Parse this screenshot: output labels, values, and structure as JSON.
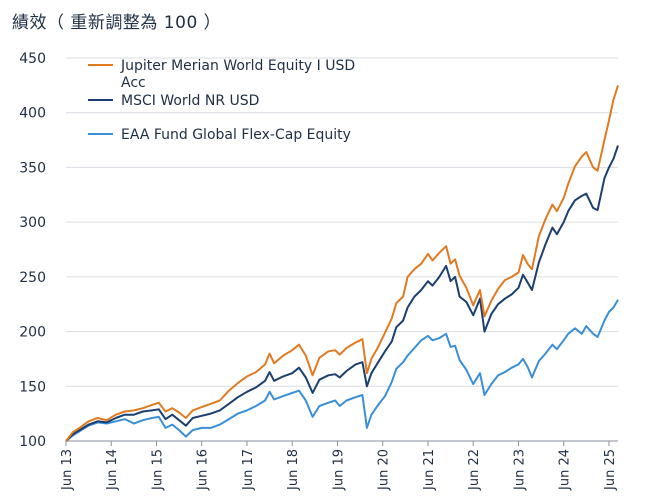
{
  "chart_data": {
    "type": "line",
    "title": "績效（ 重新調整為 100 ）",
    "ylim": [
      100,
      450
    ],
    "yticks": [
      100,
      150,
      200,
      250,
      300,
      350,
      400,
      450
    ],
    "xlim": [
      2013.5,
      2025.7
    ],
    "xticks": [
      {
        "label": "Jun 13",
        "x": 2013.5
      },
      {
        "label": "Jun 14",
        "x": 2014.5
      },
      {
        "label": "Jun 15",
        "x": 2015.5
      },
      {
        "label": "Jun 16",
        "x": 2016.5
      },
      {
        "label": "Jun 17",
        "x": 2017.5
      },
      {
        "label": "Jun 18",
        "x": 2018.5
      },
      {
        "label": "Jun 19",
        "x": 2019.5
      },
      {
        "label": "Jun 20",
        "x": 2020.5
      },
      {
        "label": "Jun 21",
        "x": 2021.5
      },
      {
        "label": "Jun 22",
        "x": 2022.5
      },
      {
        "label": "Jun 23",
        "x": 2023.5
      },
      {
        "label": "Jun 24",
        "x": 2024.5
      },
      {
        "label": "Jun 25",
        "x": 2025.5
      }
    ],
    "legend_position": "top-left",
    "series": [
      {
        "name": "Jupiter Merian World Equity I USD Acc",
        "legend_lines": [
          "Jupiter Merian World Equity I USD",
          "Acc"
        ],
        "color": "#e07b22",
        "points": [
          [
            2013.5,
            100
          ],
          [
            2013.65,
            108
          ],
          [
            2013.8,
            112
          ],
          [
            2014.0,
            118
          ],
          [
            2014.2,
            121
          ],
          [
            2014.4,
            119
          ],
          [
            2014.6,
            124
          ],
          [
            2014.8,
            127
          ],
          [
            2015.0,
            128
          ],
          [
            2015.2,
            130
          ],
          [
            2015.4,
            133
          ],
          [
            2015.55,
            135
          ],
          [
            2015.7,
            127
          ],
          [
            2015.85,
            130
          ],
          [
            2016.0,
            126
          ],
          [
            2016.15,
            121
          ],
          [
            2016.3,
            128
          ],
          [
            2016.5,
            131
          ],
          [
            2016.7,
            134
          ],
          [
            2016.9,
            137
          ],
          [
            2017.1,
            146
          ],
          [
            2017.3,
            153
          ],
          [
            2017.5,
            159
          ],
          [
            2017.7,
            163
          ],
          [
            2017.9,
            170
          ],
          [
            2018.0,
            180
          ],
          [
            2018.1,
            171
          ],
          [
            2018.3,
            178
          ],
          [
            2018.5,
            183
          ],
          [
            2018.65,
            188
          ],
          [
            2018.8,
            178
          ],
          [
            2018.95,
            160
          ],
          [
            2019.1,
            176
          ],
          [
            2019.3,
            182
          ],
          [
            2019.45,
            183
          ],
          [
            2019.55,
            179
          ],
          [
            2019.7,
            185
          ],
          [
            2019.9,
            190
          ],
          [
            2020.05,
            193
          ],
          [
            2020.15,
            162
          ],
          [
            2020.25,
            175
          ],
          [
            2020.4,
            186
          ],
          [
            2020.55,
            199
          ],
          [
            2020.7,
            212
          ],
          [
            2020.8,
            226
          ],
          [
            2020.95,
            232
          ],
          [
            2021.05,
            250
          ],
          [
            2021.2,
            257
          ],
          [
            2021.35,
            262
          ],
          [
            2021.5,
            271
          ],
          [
            2021.6,
            265
          ],
          [
            2021.75,
            272
          ],
          [
            2021.9,
            278
          ],
          [
            2022.0,
            262
          ],
          [
            2022.1,
            266
          ],
          [
            2022.2,
            251
          ],
          [
            2022.35,
            240
          ],
          [
            2022.5,
            224
          ],
          [
            2022.65,
            238
          ],
          [
            2022.75,
            214
          ],
          [
            2022.9,
            228
          ],
          [
            2023.05,
            239
          ],
          [
            2023.2,
            247
          ],
          [
            2023.35,
            250
          ],
          [
            2023.5,
            254
          ],
          [
            2023.6,
            270
          ],
          [
            2023.7,
            262
          ],
          [
            2023.8,
            257
          ],
          [
            2023.95,
            287
          ],
          [
            2024.1,
            303
          ],
          [
            2024.25,
            316
          ],
          [
            2024.35,
            310
          ],
          [
            2024.5,
            322
          ],
          [
            2024.6,
            335
          ],
          [
            2024.75,
            351
          ],
          [
            2024.9,
            360
          ],
          [
            2025.0,
            364
          ],
          [
            2025.15,
            350
          ],
          [
            2025.25,
            347
          ],
          [
            2025.4,
            375
          ],
          [
            2025.5,
            393
          ],
          [
            2025.6,
            412
          ],
          [
            2025.7,
            425
          ]
        ]
      },
      {
        "name": "MSCI World NR USD",
        "legend_lines": [
          "MSCI World NR USD"
        ],
        "color": "#1b3f6f",
        "points": [
          [
            2013.5,
            100
          ],
          [
            2013.65,
            106
          ],
          [
            2013.8,
            110
          ],
          [
            2014.0,
            115
          ],
          [
            2014.2,
            118
          ],
          [
            2014.4,
            117
          ],
          [
            2014.6,
            121
          ],
          [
            2014.8,
            124
          ],
          [
            2015.0,
            124
          ],
          [
            2015.2,
            127
          ],
          [
            2015.4,
            128
          ],
          [
            2015.55,
            129
          ],
          [
            2015.7,
            120
          ],
          [
            2015.85,
            124
          ],
          [
            2016.0,
            119
          ],
          [
            2016.15,
            114
          ],
          [
            2016.3,
            121
          ],
          [
            2016.5,
            123
          ],
          [
            2016.7,
            125
          ],
          [
            2016.9,
            128
          ],
          [
            2017.1,
            134
          ],
          [
            2017.3,
            140
          ],
          [
            2017.5,
            145
          ],
          [
            2017.7,
            149
          ],
          [
            2017.9,
            155
          ],
          [
            2018.0,
            163
          ],
          [
            2018.1,
            155
          ],
          [
            2018.3,
            159
          ],
          [
            2018.5,
            162
          ],
          [
            2018.65,
            167
          ],
          [
            2018.8,
            158
          ],
          [
            2018.95,
            144
          ],
          [
            2019.1,
            156
          ],
          [
            2019.3,
            160
          ],
          [
            2019.45,
            161
          ],
          [
            2019.55,
            158
          ],
          [
            2019.7,
            164
          ],
          [
            2019.9,
            170
          ],
          [
            2020.05,
            172
          ],
          [
            2020.15,
            150
          ],
          [
            2020.25,
            162
          ],
          [
            2020.4,
            172
          ],
          [
            2020.55,
            182
          ],
          [
            2020.7,
            191
          ],
          [
            2020.8,
            204
          ],
          [
            2020.95,
            210
          ],
          [
            2021.05,
            222
          ],
          [
            2021.2,
            232
          ],
          [
            2021.35,
            238
          ],
          [
            2021.5,
            246
          ],
          [
            2021.6,
            242
          ],
          [
            2021.75,
            250
          ],
          [
            2021.9,
            260
          ],
          [
            2022.0,
            246
          ],
          [
            2022.1,
            250
          ],
          [
            2022.2,
            232
          ],
          [
            2022.35,
            227
          ],
          [
            2022.5,
            215
          ],
          [
            2022.65,
            230
          ],
          [
            2022.75,
            200
          ],
          [
            2022.9,
            216
          ],
          [
            2023.05,
            225
          ],
          [
            2023.2,
            230
          ],
          [
            2023.35,
            234
          ],
          [
            2023.5,
            240
          ],
          [
            2023.6,
            252
          ],
          [
            2023.7,
            245
          ],
          [
            2023.8,
            238
          ],
          [
            2023.95,
            263
          ],
          [
            2024.1,
            280
          ],
          [
            2024.25,
            295
          ],
          [
            2024.35,
            289
          ],
          [
            2024.5,
            300
          ],
          [
            2024.6,
            310
          ],
          [
            2024.75,
            320
          ],
          [
            2024.9,
            324
          ],
          [
            2025.0,
            326
          ],
          [
            2025.15,
            313
          ],
          [
            2025.25,
            311
          ],
          [
            2025.4,
            340
          ],
          [
            2025.5,
            350
          ],
          [
            2025.6,
            358
          ],
          [
            2025.7,
            370
          ]
        ]
      },
      {
        "name": "EAA Fund Global Flex-Cap Equity",
        "legend_lines": [
          "EAA Fund Global Flex-Cap Equity"
        ],
        "color": "#3b8fd6",
        "points": [
          [
            2013.5,
            100
          ],
          [
            2013.65,
            105
          ],
          [
            2013.8,
            109
          ],
          [
            2014.0,
            114
          ],
          [
            2014.2,
            117
          ],
          [
            2014.4,
            116
          ],
          [
            2014.6,
            118
          ],
          [
            2014.8,
            120
          ],
          [
            2015.0,
            116
          ],
          [
            2015.2,
            119
          ],
          [
            2015.4,
            121
          ],
          [
            2015.55,
            122
          ],
          [
            2015.7,
            112
          ],
          [
            2015.85,
            115
          ],
          [
            2016.0,
            110
          ],
          [
            2016.15,
            104
          ],
          [
            2016.3,
            110
          ],
          [
            2016.5,
            112
          ],
          [
            2016.7,
            112
          ],
          [
            2016.9,
            115
          ],
          [
            2017.1,
            120
          ],
          [
            2017.3,
            125
          ],
          [
            2017.5,
            128
          ],
          [
            2017.7,
            132
          ],
          [
            2017.9,
            137
          ],
          [
            2018.0,
            145
          ],
          [
            2018.1,
            138
          ],
          [
            2018.3,
            141
          ],
          [
            2018.5,
            144
          ],
          [
            2018.65,
            146
          ],
          [
            2018.8,
            137
          ],
          [
            2018.95,
            122
          ],
          [
            2019.1,
            132
          ],
          [
            2019.3,
            135
          ],
          [
            2019.45,
            137
          ],
          [
            2019.55,
            132
          ],
          [
            2019.7,
            137
          ],
          [
            2019.9,
            140
          ],
          [
            2020.05,
            142
          ],
          [
            2020.15,
            112
          ],
          [
            2020.25,
            124
          ],
          [
            2020.4,
            133
          ],
          [
            2020.55,
            141
          ],
          [
            2020.7,
            154
          ],
          [
            2020.8,
            166
          ],
          [
            2020.95,
            172
          ],
          [
            2021.05,
            178
          ],
          [
            2021.2,
            185
          ],
          [
            2021.35,
            192
          ],
          [
            2021.5,
            196
          ],
          [
            2021.6,
            192
          ],
          [
            2021.75,
            194
          ],
          [
            2021.9,
            198
          ],
          [
            2022.0,
            186
          ],
          [
            2022.1,
            187
          ],
          [
            2022.2,
            174
          ],
          [
            2022.35,
            165
          ],
          [
            2022.5,
            152
          ],
          [
            2022.65,
            162
          ],
          [
            2022.75,
            142
          ],
          [
            2022.9,
            152
          ],
          [
            2023.05,
            160
          ],
          [
            2023.2,
            163
          ],
          [
            2023.35,
            167
          ],
          [
            2023.5,
            170
          ],
          [
            2023.6,
            175
          ],
          [
            2023.7,
            168
          ],
          [
            2023.8,
            158
          ],
          [
            2023.95,
            173
          ],
          [
            2024.1,
            180
          ],
          [
            2024.25,
            188
          ],
          [
            2024.35,
            184
          ],
          [
            2024.5,
            192
          ],
          [
            2024.6,
            198
          ],
          [
            2024.75,
            203
          ],
          [
            2024.9,
            198
          ],
          [
            2025.0,
            205
          ],
          [
            2025.15,
            198
          ],
          [
            2025.25,
            195
          ],
          [
            2025.4,
            210
          ],
          [
            2025.5,
            218
          ],
          [
            2025.6,
            222
          ],
          [
            2025.7,
            229
          ]
        ]
      }
    ]
  }
}
